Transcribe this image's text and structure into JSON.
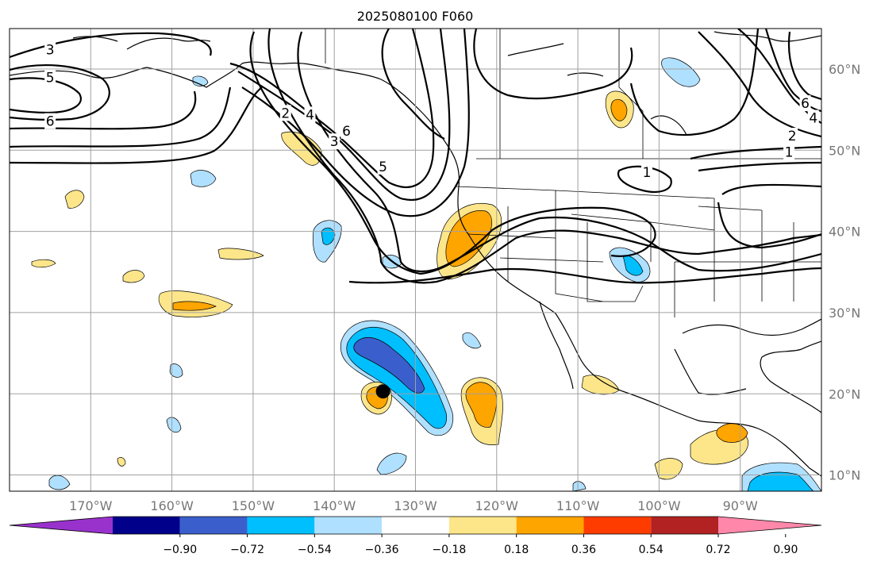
{
  "title": "2025080100 F060",
  "map": {
    "lon_range": [
      -180,
      -80
    ],
    "lat_range": [
      8,
      65
    ],
    "lon_ticks": [
      {
        "lon": -170,
        "label": "170°W"
      },
      {
        "lon": -160,
        "label": "160°W"
      },
      {
        "lon": -150,
        "label": "150°W"
      },
      {
        "lon": -140,
        "label": "140°W"
      },
      {
        "lon": -130,
        "label": "130°W"
      },
      {
        "lon": -120,
        "label": "120°W"
      },
      {
        "lon": -110,
        "label": "110°W"
      },
      {
        "lon": -100,
        "label": "100°W"
      },
      {
        "lon": -90,
        "label": "90°W"
      }
    ],
    "lat_ticks": [
      {
        "lat": 10,
        "label": "10°N"
      },
      {
        "lat": 20,
        "label": "20°N"
      },
      {
        "lat": 30,
        "label": "30°N"
      },
      {
        "lat": 40,
        "label": "40°N"
      },
      {
        "lat": 50,
        "label": "50°N"
      },
      {
        "lat": 60,
        "label": "60°N"
      }
    ],
    "marker": {
      "lon": -134,
      "lat": 20.3,
      "color": "#000000"
    },
    "contour_labels": [
      {
        "text": "3",
        "lon": -175,
        "lat": 62.4
      },
      {
        "text": "5",
        "lon": -175,
        "lat": 59.0
      },
      {
        "text": "6",
        "lon": -175,
        "lat": 53.6
      },
      {
        "text": "2",
        "lon": -146,
        "lat": 54.6
      },
      {
        "text": "4",
        "lon": -143,
        "lat": 54.4
      },
      {
        "text": "3",
        "lon": -140,
        "lat": 51.1
      },
      {
        "text": "6",
        "lon": -138.5,
        "lat": 52.4
      },
      {
        "text": "5",
        "lon": -134,
        "lat": 48.0
      },
      {
        "text": "1",
        "lon": -101.5,
        "lat": 47.3
      },
      {
        "text": "2",
        "lon": -83.6,
        "lat": 51.8
      },
      {
        "text": "1",
        "lon": -84,
        "lat": 49.8
      },
      {
        "text": "4",
        "lon": -81,
        "lat": 54.0
      },
      {
        "text": "6",
        "lon": -82,
        "lat": 55.8
      }
    ]
  },
  "colorbar": {
    "colors": [
      "#9932cc",
      "#00008b",
      "#3a5fcd",
      "#00bfff",
      "#b0e0ff",
      "#ffffff",
      "#fde68a",
      "#ffa500",
      "#ff3c00",
      "#b22222",
      "#ff88aa"
    ],
    "tick_labels": [
      "−0.90",
      "−0.72",
      "−0.54",
      "−0.36",
      "−0.18",
      "0.18",
      "0.36",
      "0.54",
      "0.72",
      "0.90"
    ]
  }
}
